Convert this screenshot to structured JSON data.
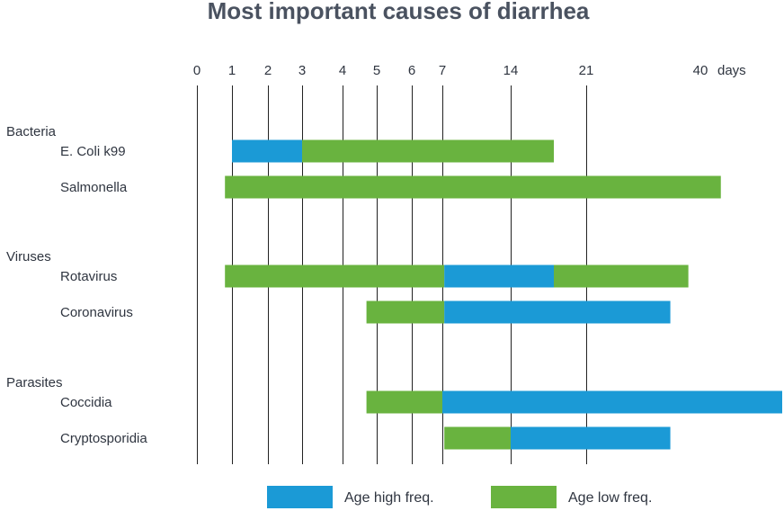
{
  "chart_data": {
    "type": "bar",
    "subtype": "horizontal-range (gantt)",
    "title": "Most important causes of diarrhea",
    "xlabel": "days",
    "x_ticks": [
      "0",
      "1",
      "2",
      "3",
      "4",
      "5",
      "6",
      "7",
      "14",
      "21",
      "40"
    ],
    "x_scale": "non-linear (days 0–7 evenly spaced, then 14, 21, 40)",
    "grid": true,
    "legend_position": "bottom",
    "colors": {
      "high": "#1b9ad6",
      "low": "#69b33f"
    },
    "legend": [
      {
        "key": "high",
        "label": "Age high freq."
      },
      {
        "key": "low",
        "label": "Age low freq."
      }
    ],
    "groups": [
      {
        "name": "Bacteria",
        "rows": [
          {
            "label": "E. Coli k99",
            "segments": [
              {
                "from": 1,
                "to": 3,
                "type": "high"
              },
              {
                "from": 3,
                "to": 18,
                "type": "low"
              }
            ]
          },
          {
            "label": "Salmonella",
            "segments": [
              {
                "from": 0.8,
                "to": 42,
                "type": "low"
              }
            ]
          }
        ]
      },
      {
        "name": "Viruses",
        "rows": [
          {
            "label": "Rotavirus",
            "segments": [
              {
                "from": 0.8,
                "to": 7.2,
                "type": "low"
              },
              {
                "from": 7.2,
                "to": 18,
                "type": "high"
              },
              {
                "from": 18,
                "to": 38,
                "type": "low"
              }
            ]
          },
          {
            "label": "Coronavirus",
            "segments": [
              {
                "from": 4.7,
                "to": 7.2,
                "type": "low"
              },
              {
                "from": 7.2,
                "to": 35,
                "type": "high"
              }
            ]
          }
        ]
      },
      {
        "name": "Parasites",
        "rows": [
          {
            "label": "Coccidia",
            "segments": [
              {
                "from": 4.7,
                "to": 7,
                "type": "low"
              },
              {
                "from": 7,
                "to": 48,
                "type": "high"
              }
            ]
          },
          {
            "label": "Cryptosporidia",
            "segments": [
              {
                "from": 7.2,
                "to": 14,
                "type": "low"
              },
              {
                "from": 14,
                "to": 35,
                "type": "high"
              }
            ]
          }
        ]
      }
    ]
  }
}
